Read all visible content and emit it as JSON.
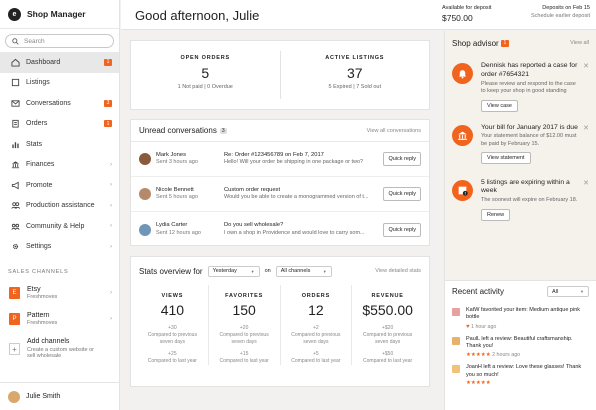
{
  "sidebar": {
    "app_title": "Shop Manager",
    "logo_letter": "e",
    "search_placeholder": "Search",
    "items": [
      {
        "label": "Dashboard",
        "badge": "1"
      },
      {
        "label": "Listings",
        "badge": ""
      },
      {
        "label": "Conversations",
        "badge": "3"
      },
      {
        "label": "Orders",
        "badge": "1"
      },
      {
        "label": "Stats",
        "badge": ""
      },
      {
        "label": "Finances",
        "badge": ""
      },
      {
        "label": "Promote",
        "badge": ""
      },
      {
        "label": "Production assistance",
        "badge": ""
      },
      {
        "label": "Community & Help",
        "badge": ""
      },
      {
        "label": "Settings",
        "badge": ""
      }
    ],
    "channels_header": "SALES CHANNELS",
    "channels": [
      {
        "icon": "E",
        "name": "Etsy",
        "sub": "Freshmoves"
      },
      {
        "icon": "P",
        "name": "Pattern",
        "sub": "Freshmoves"
      }
    ],
    "add_channel": {
      "name": "Add channels",
      "sub1": "Create a custom website or",
      "sub2": "sell wholesale"
    },
    "user": "Julie Smith"
  },
  "header": {
    "greeting": "Good afternoon, Julie",
    "available_label": "Available for deposit",
    "available_value": "$750.00",
    "deposit_label": "Deposits on Feb 15",
    "deposit_link": "Schedule earlier deposit"
  },
  "orders": {
    "open_title": "OPEN ORDERS",
    "open_value": "5",
    "open_sub": "1 Not paid  |  0 Overdue",
    "active_title": "ACTIVE LISTINGS",
    "active_value": "37",
    "active_sub": "5 Expired  |  7 Sold out"
  },
  "unread": {
    "title": "Unread conversations",
    "count": "3",
    "view_all": "View all conversations",
    "reply_label": "Quick reply",
    "items": [
      {
        "name": "Mark Jones",
        "time": "Sent 3 hours ago",
        "subject": "Re: Order #123456789 on Feb 7, 2017",
        "preview": "Hello! Will your order be shipping in one package or two?"
      },
      {
        "name": "Nicole Bennett",
        "time": "Sent 5 hours ago",
        "subject": "Custom order request",
        "preview": "Would you be able to create a monogrammed version of t..."
      },
      {
        "name": "Lydia Carter",
        "time": "Sent 12 hours ago",
        "subject": "Do you sell wholesale?",
        "preview": "I own a shop in Providence and would love to carry som..."
      }
    ]
  },
  "stats": {
    "title": "Stats overview for",
    "period": "Yesterday",
    "on": "on",
    "channel": "All channels",
    "view_detailed": "View detailed stats",
    "cols": [
      {
        "title": "VIEWS",
        "value": "410",
        "delta": "+30",
        "prev1": "Compared to previous",
        "prev2": "seven days",
        "delta_year": "+25",
        "last": "Compared to last year"
      },
      {
        "title": "FAVORITES",
        "value": "150",
        "delta": "+20",
        "prev1": "Compared to previous",
        "prev2": "seven days",
        "delta_year": "+15",
        "last": "Compared to last year"
      },
      {
        "title": "ORDERS",
        "value": "12",
        "delta": "+2",
        "prev1": "Compared to previous",
        "prev2": "seven days",
        "delta_year": "+5",
        "last": "Compared to last year"
      },
      {
        "title": "REVENUE",
        "value": "$550.00",
        "delta": "+$20",
        "prev1": "Compared to previous",
        "prev2": "seven days",
        "delta_year": "+$50",
        "last": "Compared to last year"
      }
    ]
  },
  "advisor": {
    "title": "Shop advisor",
    "count": "1",
    "view_all": "View all",
    "items": [
      {
        "icon": "bell-icon",
        "title": "Dennisk has reported a case for order #7654321",
        "body": "Please review and respond to the case to keep your shop in good standing",
        "button": "View case"
      },
      {
        "icon": "bank-icon",
        "title": "Your bill for January 2017 is due",
        "body": "Your statement balance of $12.00 must be paid by February 15.",
        "button": "View statement"
      },
      {
        "icon": "alert-icon",
        "title": "5 listings are expiring within a week",
        "body": "The soonest will expire on February 18.",
        "button": "Renew"
      }
    ]
  },
  "activity": {
    "title": "Recent activity",
    "filter": "All",
    "items": [
      {
        "text": "KatW favorited your item: Medium antique pink bottle",
        "meta": "1 hour ago",
        "kind": "heart",
        "stars": ""
      },
      {
        "text": "PaulL left a review: Beautiful craftsmanship. Thank you!",
        "meta": "2 hours ago",
        "kind": "review",
        "stars": "★★★★★"
      },
      {
        "text": "JoanH left a review: Love these glasses! Thank you so much!",
        "meta": "",
        "kind": "review",
        "stars": "★★★★★"
      }
    ]
  },
  "colors": {
    "accent": "#f1641e",
    "advisor_bg": "#f5f2ec"
  }
}
